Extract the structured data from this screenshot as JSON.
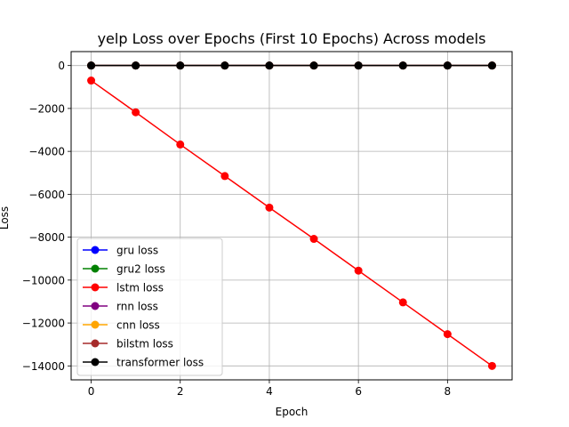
{
  "chart_data": {
    "type": "line",
    "title": "yelp Loss over Epochs (First 10 Epochs) Across models",
    "xlabel": "Epoch",
    "ylabel": "Loss",
    "x": [
      0,
      1,
      2,
      3,
      4,
      5,
      6,
      7,
      8,
      9
    ],
    "xlim": [
      -0.45,
      9.45
    ],
    "ylim": [
      -14650,
      650
    ],
    "xticks": [
      0,
      2,
      4,
      6,
      8
    ],
    "yticks": [
      0,
      -2000,
      -4000,
      -6000,
      -8000,
      -10000,
      -12000,
      -14000
    ],
    "grid": true,
    "legend_position": "lower-left",
    "series": [
      {
        "name": "gru loss",
        "color": "#0000ff",
        "values": [
          0,
          0,
          0,
          0,
          0,
          0,
          0,
          0,
          0,
          0
        ]
      },
      {
        "name": "gru2 loss",
        "color": "#008000",
        "values": [
          0,
          0,
          0,
          0,
          0,
          0,
          0,
          0,
          0,
          0
        ]
      },
      {
        "name": "lstm loss",
        "color": "#ff0000",
        "values": [
          -700,
          -2180,
          -3680,
          -5150,
          -6620,
          -8080,
          -9560,
          -11040,
          -12520,
          -14000
        ]
      },
      {
        "name": "rnn loss",
        "color": "#800080",
        "values": [
          0,
          0,
          0,
          0,
          0,
          0,
          0,
          0,
          0,
          0
        ]
      },
      {
        "name": "cnn loss",
        "color": "#ffa500",
        "values": [
          0,
          0,
          0,
          0,
          0,
          0,
          0,
          0,
          0,
          0
        ]
      },
      {
        "name": "bilstm loss",
        "color": "#a52a2a",
        "values": [
          0,
          0,
          0,
          0,
          0,
          0,
          0,
          0,
          0,
          0
        ]
      },
      {
        "name": "transformer loss",
        "color": "#000000",
        "values": [
          0,
          0,
          0,
          0,
          0,
          0,
          0,
          0,
          0,
          0
        ]
      }
    ]
  }
}
